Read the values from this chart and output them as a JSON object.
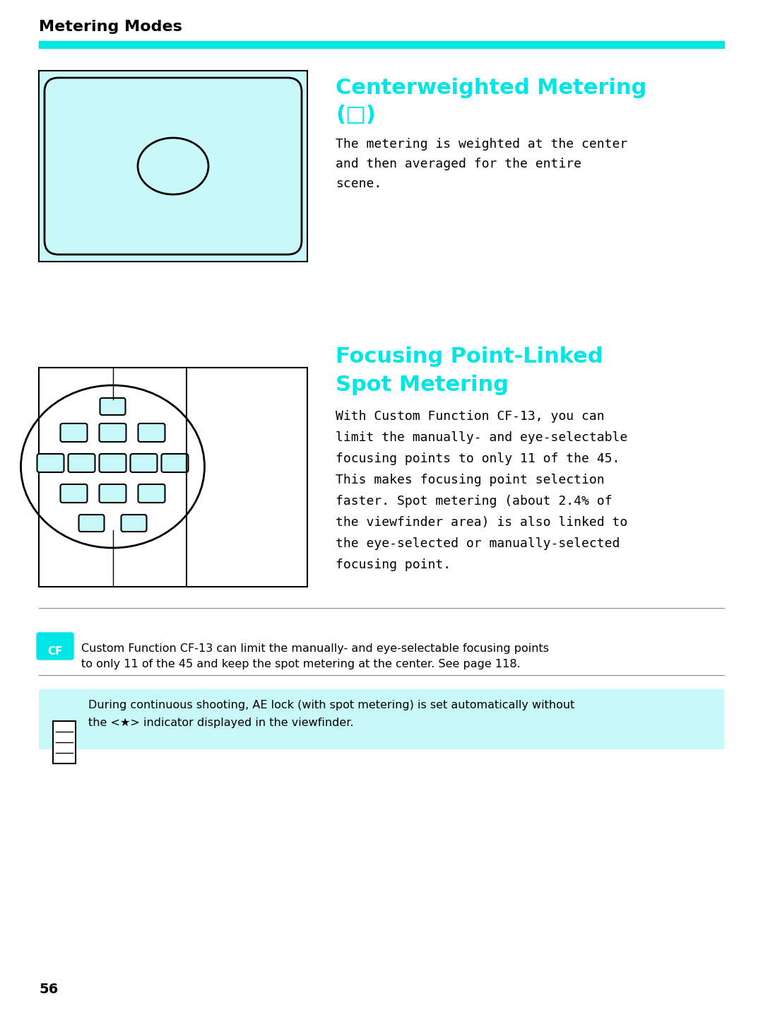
{
  "page_bg": "#ffffff",
  "cyan_color": "#00e5e5",
  "light_cyan_bg": "#c8f8f8",
  "dark_cyan_bg": "#00cccc",
  "black": "#000000",
  "header_text": "Metering Modes",
  "title1": "Centerweighted Metering",
  "title1_line2": "(□)",
  "title2_line1": "Focusing Point-Linked",
  "title2_line2": "Spot Metering",
  "body1": "The metering is weighted at the center\nand then averaged for the entire\nscene.",
  "body2": "With Custom Function CF-13, you can\nlimit the manually- and eye-selectable\nfocusing points to only 11 of the 45.\nThis makes focusing point selection\nfaster. Spot metering (about 2.4% of\nthe viewfinder area) is also linked to\nthe eye-selected or manually-selected\nfocusing point.",
  "cf_text": "Custom Function CF-13 can limit the manually- and eye-selectable focusing points\nto only 11 of the 45 and keep the spot metering at the center. See page 118.",
  "note_text": "During continuous shooting, AE lock (with spot metering) is set automatically without\nthe <★> indicator displayed in the viewfinder.",
  "page_num": "56"
}
